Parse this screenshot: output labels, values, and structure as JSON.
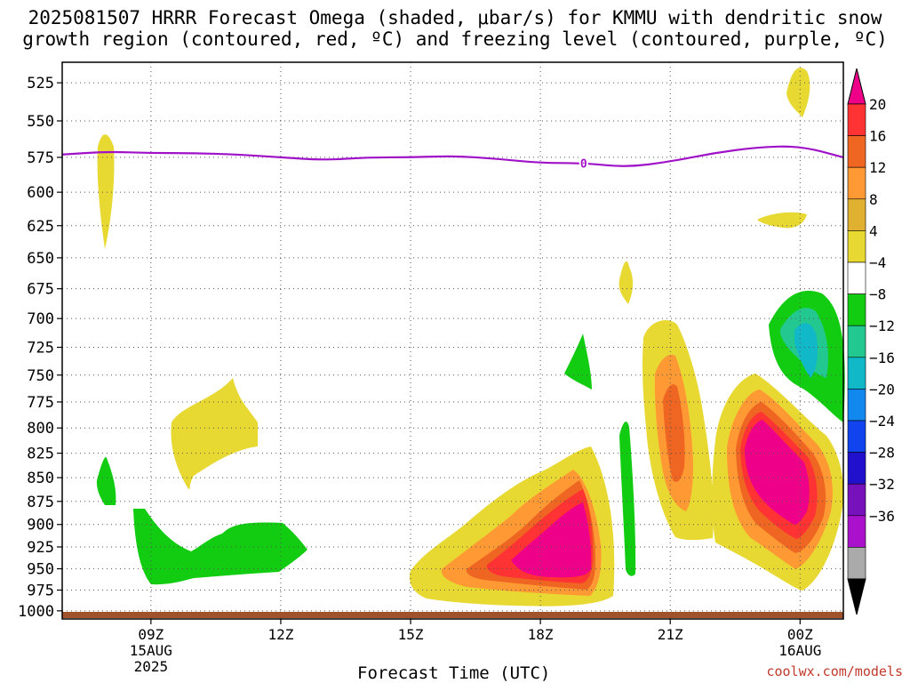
{
  "chart_data": {
    "type": "heatmap",
    "title_line1": "2025081507 HRRR Forecast Omega (shaded, μbar/s) for KMMU with dendritic snow",
    "title_line2": "growth region (contoured, red, ºC) and freezing level (contoured, purple, ºC)",
    "xlabel": "Forecast Time (UTC)",
    "credit": "coolwx.com/models",
    "y_ticks": [
      525,
      550,
      575,
      600,
      625,
      650,
      675,
      700,
      725,
      750,
      775,
      800,
      825,
      850,
      875,
      900,
      925,
      950,
      975,
      1000
    ],
    "x_ticks": [
      {
        "label": "09Z",
        "sub": [
          "15AUG",
          "2025"
        ]
      },
      {
        "label": "12Z",
        "sub": []
      },
      {
        "label": "15Z",
        "sub": []
      },
      {
        "label": "18Z",
        "sub": []
      },
      {
        "label": "21Z",
        "sub": []
      },
      {
        "label": "00Z",
        "sub": [
          "16AUG"
        ]
      }
    ],
    "x_hours": [
      9,
      12,
      15,
      18,
      21,
      24
    ],
    "x_range_hours": [
      6.95,
      25.0
    ],
    "y_range_mb": [
      512,
      1010
    ],
    "colorbar": {
      "labels": [
        20,
        16,
        12,
        8,
        4,
        -4,
        -8,
        -12,
        -16,
        -20,
        -24,
        -28,
        -32,
        -36
      ],
      "colors": [
        "#ee0088",
        "#ff3333",
        "#ee6622",
        "#ff9933",
        "#e0b030",
        "#e8d832",
        "#ffffff",
        "#11cc11",
        "#22c890",
        "#11b8c8",
        "#1188ee",
        "#1144ee",
        "#2211cc",
        "#7711bb",
        "#aa11cc",
        "#aaaaaa",
        "#000000"
      ]
    },
    "freezing_level": {
      "label": "0",
      "color": "#a012c8",
      "points": [
        [
          6.95,
          573
        ],
        [
          8,
          571
        ],
        [
          9,
          572
        ],
        [
          10,
          572
        ],
        [
          11,
          573
        ],
        [
          12,
          575
        ],
        [
          13,
          577
        ],
        [
          14,
          575
        ],
        [
          15,
          575
        ],
        [
          16,
          574
        ],
        [
          17,
          576
        ],
        [
          18,
          579
        ],
        [
          19,
          579
        ],
        [
          20,
          582
        ],
        [
          21,
          578
        ],
        [
          22,
          572
        ],
        [
          23,
          568
        ],
        [
          24,
          567
        ],
        [
          25,
          575
        ]
      ]
    }
  }
}
